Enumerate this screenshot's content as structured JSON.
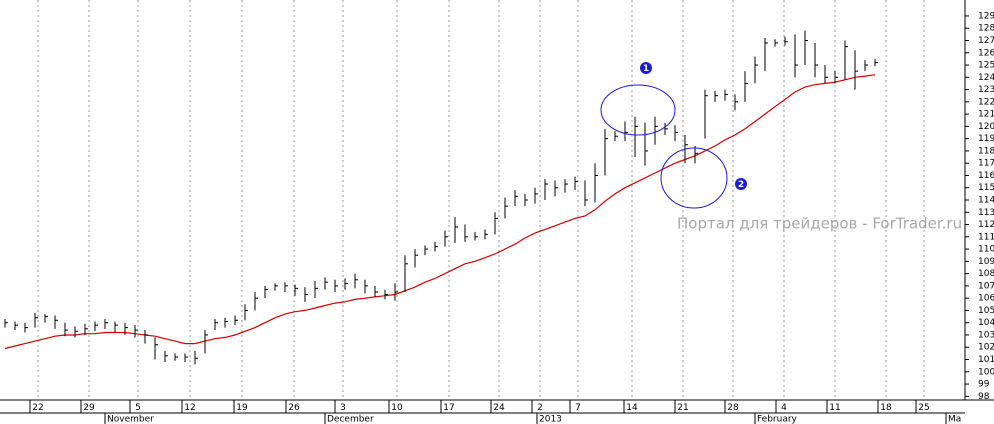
{
  "chart_data": {
    "type": "ohlc",
    "watermark": "Портал для трейдеров - ForTrader.ru",
    "annotations": [
      "1",
      "2"
    ],
    "xtick_labels": [
      "22",
      "29",
      "5",
      "12",
      "19",
      "26",
      "3",
      "10",
      "17",
      "24",
      "2",
      "7",
      "14",
      "21",
      "28",
      "4",
      "11",
      "18",
      "25"
    ],
    "month_labels": [
      "November",
      "December",
      "2013",
      "February",
      "Ma"
    ],
    "ylim": [
      97.7,
      130.3
    ],
    "yticks": [
      98,
      99,
      100,
      101,
      102,
      103,
      104,
      105,
      106,
      107,
      108,
      109,
      110,
      111,
      112,
      113,
      114,
      115,
      116,
      117,
      118,
      119,
      120,
      121,
      122,
      123,
      124,
      125,
      126,
      127,
      128,
      129
    ],
    "bar_color": "#000000",
    "ma_color": "#d40000",
    "high": [
      104.3,
      104.1,
      104.0,
      104.8,
      104.7,
      104.6,
      104.0,
      103.7,
      103.9,
      104.1,
      104.3,
      104.1,
      104.0,
      103.8,
      103.4,
      102.8,
      101.7,
      101.5,
      101.5,
      101.7,
      103.4,
      104.3,
      104.4,
      104.6,
      105.5,
      106.5,
      107.0,
      107.2,
      107.3,
      107.1,
      106.9,
      107.4,
      107.7,
      107.5,
      107.6,
      108.0,
      107.5,
      107.0,
      106.7,
      107.2,
      109.5,
      110.0,
      110.3,
      110.6,
      111.5,
      112.6,
      112.0,
      111.4,
      111.6,
      113.0,
      114.2,
      114.8,
      114.5,
      115.0,
      115.7,
      115.6,
      115.7,
      115.9,
      115.6,
      117.0,
      119.8,
      119.6,
      120.4,
      120.8,
      120.3,
      120.8,
      120.3,
      120.1,
      119.3,
      118.4,
      123.0,
      122.9,
      123.0,
      122.6,
      124.5,
      125.7,
      127.2,
      127.1,
      127.3,
      127.5,
      127.8,
      126.8,
      125.0,
      124.5,
      127.0,
      126.2,
      125.4,
      125.5
    ],
    "low": [
      103.6,
      103.4,
      103.2,
      103.6,
      104.0,
      103.5,
      102.9,
      102.8,
      103.0,
      103.3,
      103.5,
      103.2,
      103.0,
      102.8,
      102.3,
      101.0,
      100.8,
      100.9,
      100.8,
      100.6,
      101.5,
      103.4,
      103.6,
      103.8,
      104.2,
      105.0,
      106.0,
      106.6,
      106.5,
      106.2,
      105.7,
      106.0,
      106.7,
      106.5,
      106.7,
      106.8,
      106.4,
      106.1,
      105.9,
      105.8,
      106.5,
      108.5,
      109.5,
      109.8,
      110.2,
      110.5,
      110.6,
      110.7,
      110.8,
      111.2,
      112.5,
      113.5,
      113.5,
      113.7,
      114.0,
      114.3,
      114.6,
      114.8,
      113.5,
      113.8,
      116.0,
      118.8,
      118.8,
      117.5,
      116.8,
      118.5,
      119.3,
      118.8,
      117.0,
      117.0,
      119.0,
      122.0,
      122.1,
      121.3,
      122.0,
      123.5,
      124.5,
      126.5,
      126.6,
      124.0,
      125.0,
      124.0,
      123.5,
      123.5,
      123.8,
      123.0,
      124.5,
      124.9
    ],
    "close": [
      104.0,
      103.8,
      103.6,
      104.4,
      104.5,
      104.2,
      103.4,
      103.3,
      103.5,
      103.8,
      104.0,
      103.8,
      103.6,
      103.4,
      103.0,
      102.2,
      101.3,
      101.2,
      101.2,
      101.1,
      103.0,
      104.0,
      104.1,
      104.2,
      105.0,
      106.0,
      106.7,
      107.0,
      107.0,
      106.8,
      106.3,
      106.8,
      107.3,
      107.0,
      107.2,
      107.5,
      107.0,
      106.5,
      106.3,
      106.5,
      108.8,
      109.5,
      110.0,
      110.2,
      111.0,
      111.8,
      111.0,
      111.0,
      111.2,
      112.5,
      113.5,
      114.3,
      114.0,
      114.5,
      115.3,
      115.0,
      115.3,
      115.5,
      114.0,
      116.0,
      119.0,
      119.2,
      119.5,
      120.0,
      118.0,
      120.0,
      119.8,
      119.5,
      118.5,
      117.8,
      122.5,
      122.5,
      122.6,
      122.0,
      123.5,
      125.0,
      126.8,
      126.8,
      126.9,
      125.0,
      127.0,
      125.0,
      124.0,
      124.0,
      126.5,
      124.5,
      125.0,
      125.2
    ],
    "ma": [
      101.9,
      102.1,
      102.3,
      102.5,
      102.7,
      102.9,
      103.0,
      103.0,
      103.1,
      103.1,
      103.2,
      103.2,
      103.2,
      103.1,
      103.0,
      102.9,
      102.7,
      102.5,
      102.3,
      102.3,
      102.5,
      102.7,
      102.8,
      103.0,
      103.3,
      103.6,
      104.0,
      104.4,
      104.7,
      104.9,
      105.0,
      105.2,
      105.4,
      105.6,
      105.7,
      105.9,
      106.0,
      106.1,
      106.2,
      106.3,
      106.6,
      106.9,
      107.3,
      107.6,
      108.0,
      108.4,
      108.8,
      109.0,
      109.3,
      109.6,
      110.0,
      110.4,
      110.9,
      111.3,
      111.6,
      111.9,
      112.2,
      112.5,
      112.7,
      113.2,
      113.9,
      114.5,
      115.0,
      115.4,
      115.8,
      116.2,
      116.6,
      117.0,
      117.3,
      117.6,
      118.0,
      118.4,
      118.9,
      119.3,
      119.8,
      120.4,
      121.0,
      121.6,
      122.2,
      122.8,
      123.2,
      123.4,
      123.5,
      123.6,
      123.8,
      124.0,
      124.1,
      124.2
    ]
  }
}
